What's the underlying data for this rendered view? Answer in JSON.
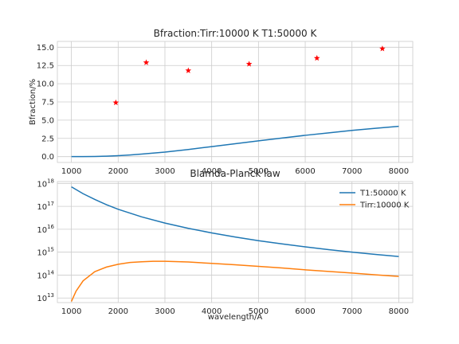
{
  "chart_data": [
    {
      "type": "scatter+line",
      "title": "Bfraction:Tirr:10000 K T1:50000 K",
      "xlabel": "",
      "ylabel": "Bfraction/%",
      "xlim": [
        700,
        8300
      ],
      "ylim": [
        -0.8,
        15.8
      ],
      "xticks": [
        1000,
        2000,
        3000,
        4000,
        5000,
        6000,
        7000,
        8000
      ],
      "yticks": [
        0.0,
        2.5,
        5.0,
        7.5,
        10.0,
        12.5,
        15.0
      ],
      "ytick_labels": [
        "0.0",
        "2.5",
        "5.0",
        "7.5",
        "10.0",
        "12.5",
        "15.0"
      ],
      "grid": true,
      "scatter": {
        "marker": "star",
        "color": "#ff0000",
        "x": [
          1950,
          2600,
          3500,
          4800,
          6250,
          7650
        ],
        "y": [
          7.4,
          12.9,
          11.8,
          12.7,
          13.5,
          14.8
        ]
      },
      "line": {
        "color": "#1f77b4",
        "x": [
          1000,
          1250,
          1500,
          1750,
          2000,
          2250,
          2500,
          2750,
          3000,
          3500,
          4000,
          4500,
          5000,
          5500,
          6000,
          6500,
          7000,
          7500,
          8000
        ],
        "y": [
          0.0,
          0.01,
          0.02,
          0.06,
          0.13,
          0.23,
          0.35,
          0.48,
          0.62,
          0.98,
          1.37,
          1.77,
          2.16,
          2.55,
          2.92,
          3.26,
          3.59,
          3.88,
          4.15
        ]
      }
    },
    {
      "type": "line",
      "title": "Blamda-Planck law",
      "xlabel": "wavelength/A",
      "ylabel": "",
      "yscale": "log",
      "xlim": [
        700,
        8300
      ],
      "ylim_log10": [
        12.8,
        18.08
      ],
      "xticks": [
        1000,
        2000,
        3000,
        4000,
        5000,
        6000,
        7000,
        8000
      ],
      "ytick_exponents": [
        13,
        14,
        15,
        16,
        17,
        18
      ],
      "ytick_base": "10",
      "grid": true,
      "legend": "top-right",
      "series": [
        {
          "name": "T1:50000 K",
          "color": "#1f77b4",
          "x": [
            1000,
            1250,
            1500,
            1750,
            2000,
            2500,
            3000,
            3500,
            4000,
            4500,
            5000,
            5500,
            6000,
            6500,
            7000,
            7500,
            8000
          ],
          "y_log10": [
            17.85,
            17.55,
            17.3,
            17.07,
            16.87,
            16.54,
            16.27,
            16.04,
            15.84,
            15.66,
            15.5,
            15.36,
            15.23,
            15.11,
            15.0,
            14.9,
            14.81
          ]
        },
        {
          "name": "Tirr:10000 K",
          "color": "#ff7f0e",
          "x": [
            1000,
            1100,
            1250,
            1500,
            1750,
            2000,
            2250,
            2500,
            2750,
            3000,
            3500,
            4000,
            4500,
            5000,
            5500,
            6000,
            6500,
            7000,
            7500,
            8000
          ],
          "y_log10": [
            12.85,
            13.3,
            13.75,
            14.15,
            14.35,
            14.47,
            14.55,
            14.58,
            14.6,
            14.6,
            14.57,
            14.51,
            14.45,
            14.38,
            14.31,
            14.23,
            14.16,
            14.09,
            14.01,
            13.94
          ]
        }
      ]
    }
  ]
}
